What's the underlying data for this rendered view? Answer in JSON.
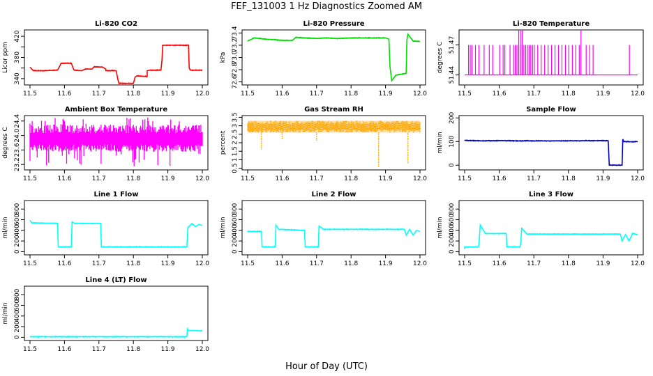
{
  "figure": {
    "title": "FEF_131003  1 Hz Diagnostics Zoomed AM",
    "xlabel": "Hour of Day (UTC)"
  },
  "chart_data": [
    {
      "type": "line",
      "title": "Li-820 CO2",
      "ylabel": "Licor ppm",
      "color": "#ff0000",
      "xlim": [
        11.5,
        12.0
      ],
      "ylim": [
        328,
        432
      ],
      "xticks": [
        "11.5",
        "11.6",
        "11.7",
        "11.8",
        "11.9",
        "12.0"
      ],
      "yticks": [
        340,
        360,
        380,
        400,
        420
      ],
      "yticklabels": [
        "340",
        "",
        "380",
        "",
        "420"
      ],
      "series": [
        {
          "x": [
            11.5,
            11.505,
            11.51,
            11.54,
            11.58,
            11.588,
            11.59,
            11.62,
            11.625,
            11.628,
            11.65,
            11.66,
            11.68,
            11.685,
            11.71,
            11.72,
            11.72,
            11.75,
            11.755,
            11.758,
            11.8,
            11.805,
            11.81,
            11.84,
            11.84,
            11.85,
            11.88,
            11.883,
            11.885,
            11.96,
            11.962,
            11.965,
            12.0
          ],
          "y": [
            362,
            358,
            355,
            355,
            356,
            366,
            369,
            369,
            360,
            356,
            355,
            358,
            358,
            362,
            362,
            358,
            355,
            355,
            338,
            331,
            331,
            343,
            345,
            344,
            355,
            356,
            356,
            375,
            403,
            403,
            360,
            356,
            356
          ]
        }
      ]
    },
    {
      "type": "line",
      "title": "Li-820 Pressure",
      "ylabel": "kPa",
      "color": "#00dd00",
      "xlim": [
        11.5,
        12.0
      ],
      "ylim": [
        72.55,
        73.45
      ],
      "xticks": [
        "11.5",
        "11.6",
        "11.7",
        "11.8",
        "11.9",
        "12.0"
      ],
      "yticks": [
        72.6,
        72.8,
        73.0,
        73.2,
        73.4
      ],
      "yticklabels": [
        "72.6",
        "72.8",
        "73.0",
        "73.2",
        "73.4"
      ],
      "series": [
        {
          "x": [
            11.5,
            11.52,
            11.55,
            11.58,
            11.6,
            11.63,
            11.64,
            11.67,
            11.7,
            11.73,
            11.76,
            11.8,
            11.85,
            11.9,
            11.91,
            11.913,
            11.918,
            11.93,
            11.96,
            11.962,
            11.965,
            11.98,
            12.0
          ],
          "y": [
            73.27,
            73.32,
            73.3,
            73.29,
            73.28,
            73.28,
            73.33,
            73.32,
            73.31,
            73.32,
            73.31,
            73.32,
            73.32,
            73.32,
            73.3,
            72.85,
            72.62,
            72.71,
            72.74,
            73.28,
            73.38,
            73.27,
            73.26
          ]
        }
      ]
    },
    {
      "type": "line",
      "title": "Li-820 Temperature",
      "ylabel": "degrees C",
      "color": "#ff00ff",
      "xlim": [
        11.5,
        12.0
      ],
      "ylim": [
        51.43,
        51.485
      ],
      "xticks": [
        "11.5",
        "11.6",
        "11.7",
        "11.8",
        "11.9",
        "12.0"
      ],
      "yticks": [
        51.44,
        51.47
      ],
      "yticklabels": [
        "51.44",
        "51.47"
      ],
      "spikes": {
        "base": 51.44,
        "level": 51.47,
        "high": 51.485,
        "x": [
          11.51,
          11.515,
          11.52,
          11.53,
          11.54,
          11.555,
          11.57,
          11.58,
          11.6,
          11.61,
          11.615,
          11.63,
          11.64,
          11.645,
          11.65,
          11.655,
          11.66,
          11.665,
          11.67,
          11.675,
          11.68,
          11.685,
          11.69,
          11.695,
          11.7,
          11.71,
          11.72,
          11.73,
          11.74,
          11.75,
          11.76,
          11.77,
          11.78,
          11.79,
          11.8,
          11.81,
          11.82,
          11.83,
          11.85,
          11.86,
          11.87,
          11.975
        ],
        "x_high": [
          11.655,
          11.66,
          11.665,
          11.835
        ]
      }
    },
    {
      "type": "line",
      "title": "Ambient Box Temperature",
      "ylabel": "degrees C",
      "color": "#ff00ff",
      "xlim": [
        11.5,
        12.0
      ],
      "ylim": [
        23.05,
        24.55
      ],
      "xticks": [
        "11.5",
        "11.6",
        "11.7",
        "11.8",
        "11.9",
        "12.0"
      ],
      "yticks": [
        23.2,
        23.6,
        24.0,
        24.4
      ],
      "yticklabels": [
        "23.2",
        "23.6",
        "24.0",
        "24.4"
      ],
      "band": {
        "center": 23.9,
        "lo": 23.55,
        "hi": 24.3,
        "min": 23.15,
        "max": 24.5
      }
    },
    {
      "type": "scatter",
      "title": "Gas Stream RH",
      "ylabel": "percent",
      "color": "#ffa500",
      "xlim": [
        11.5,
        12.0
      ],
      "ylim": [
        0.4,
        3.6
      ],
      "xticks": [
        "11.5",
        "11.6",
        "11.7",
        "11.8",
        "11.9",
        "12.0"
      ],
      "yticks": [
        0.5,
        1.0,
        1.5,
        2.0,
        2.5,
        3.0,
        3.5
      ],
      "yticklabels": [
        "0.5",
        "1",
        "1.5",
        "2",
        "2.5",
        "3",
        "3.5"
      ],
      "band": {
        "center": 2.95,
        "lo": 2.6,
        "hi": 3.3
      },
      "dips": [
        {
          "x": 11.54,
          "y": 1.6
        },
        {
          "x": 11.6,
          "y": 2.2
        },
        {
          "x": 11.7,
          "y": 2.1
        },
        {
          "x": 11.88,
          "y": 0.55
        },
        {
          "x": 11.965,
          "y": 0.75
        }
      ]
    },
    {
      "type": "line",
      "title": "Sample Flow",
      "ylabel": "ml/min",
      "color": "#0000cc",
      "xlim": [
        11.5,
        12.0
      ],
      "ylim": [
        -20,
        210
      ],
      "xticks": [
        "11.5",
        "11.6",
        "11.7",
        "11.8",
        "11.9",
        "12.0"
      ],
      "yticks": [
        0,
        100,
        200
      ],
      "yticklabels": [
        "0",
        "100",
        "200"
      ],
      "series": [
        {
          "x": [
            11.5,
            11.55,
            11.6,
            11.65,
            11.7,
            11.8,
            11.9,
            11.915,
            11.918,
            11.955,
            11.957,
            11.96,
            11.98,
            12.0
          ],
          "y": [
            105,
            103,
            104,
            103,
            103,
            103,
            104,
            103,
            0,
            0,
            110,
            100,
            99,
            100
          ]
        }
      ]
    },
    {
      "type": "line",
      "title": "Line 1 Flow",
      "ylabel": "ml/min",
      "color": "#00ffff",
      "xlim": [
        11.5,
        12.0
      ],
      "ylim": [
        -60,
        960
      ],
      "xticks": [
        "11.5",
        "11.6",
        "11.7",
        "11.8",
        "11.9",
        "12.0"
      ],
      "yticks": [
        0,
        200,
        400,
        600,
        800
      ],
      "yticklabels": [
        "0",
        "200",
        "400",
        "600",
        "800"
      ],
      "series": [
        {
          "x": [
            11.5,
            11.505,
            11.58,
            11.582,
            11.62,
            11.622,
            11.63,
            11.705,
            11.707,
            11.955,
            11.958,
            11.97,
            11.98,
            11.99,
            12.0
          ],
          "y": [
            590,
            540,
            530,
            90,
            90,
            560,
            530,
            530,
            90,
            90,
            450,
            530,
            470,
            510,
            490
          ]
        }
      ]
    },
    {
      "type": "line",
      "title": "Line 2 Flow",
      "ylabel": "ml/min",
      "color": "#00ffff",
      "xlim": [
        11.5,
        12.0
      ],
      "ylim": [
        -60,
        960
      ],
      "xticks": [
        "11.5",
        "11.6",
        "11.7",
        "11.8",
        "11.9",
        "12.0"
      ],
      "yticks": [
        0,
        200,
        400,
        600,
        800
      ],
      "yticklabels": [
        "0",
        "200",
        "400",
        "600",
        "800"
      ],
      "series": [
        {
          "x": [
            11.5,
            11.54,
            11.542,
            11.58,
            11.582,
            11.59,
            11.665,
            11.667,
            11.705,
            11.707,
            11.72,
            11.955,
            11.96,
            11.97,
            11.98,
            11.99,
            12.0
          ],
          "y": [
            380,
            380,
            90,
            90,
            500,
            420,
            400,
            90,
            90,
            480,
            420,
            420,
            310,
            420,
            310,
            400,
            380
          ]
        }
      ]
    },
    {
      "type": "line",
      "title": "Line 3 Flow",
      "ylabel": "ml/min",
      "color": "#00ffff",
      "xlim": [
        11.5,
        12.0
      ],
      "ylim": [
        -60,
        960
      ],
      "xticks": [
        "11.5",
        "11.6",
        "11.7",
        "11.8",
        "11.9",
        "12.0"
      ],
      "yticks": [
        0,
        200,
        400,
        600,
        800
      ],
      "yticklabels": [
        "0",
        "200",
        "400",
        "600",
        "800"
      ],
      "series": [
        {
          "x": [
            11.5,
            11.5,
            11.54,
            11.542,
            11.545,
            11.56,
            11.62,
            11.622,
            11.66,
            11.662,
            11.665,
            11.68,
            11.95,
            11.955,
            11.965,
            11.975,
            11.985,
            12.0
          ],
          "y": [
            50,
            90,
            90,
            170,
            500,
            340,
            340,
            90,
            90,
            170,
            440,
            330,
            330,
            200,
            320,
            200,
            340,
            320
          ]
        }
      ]
    },
    {
      "type": "line",
      "title": "Line 4 (LT) Flow",
      "ylabel": "ml/min",
      "color": "#00ffff",
      "xlim": [
        11.5,
        12.0
      ],
      "ylim": [
        -60,
        960
      ],
      "xticks": [
        "11.5",
        "11.6",
        "11.7",
        "11.8",
        "11.9",
        "12.0"
      ],
      "yticks": [
        0,
        200,
        400,
        600,
        800
      ],
      "yticklabels": [
        "0",
        "200",
        "400",
        "600",
        "800"
      ],
      "series": [
        {
          "x": [
            11.5,
            11.955,
            11.957,
            11.96,
            11.97,
            12.0
          ],
          "y": [
            10,
            10,
            160,
            130,
            130,
            120
          ]
        }
      ]
    }
  ]
}
